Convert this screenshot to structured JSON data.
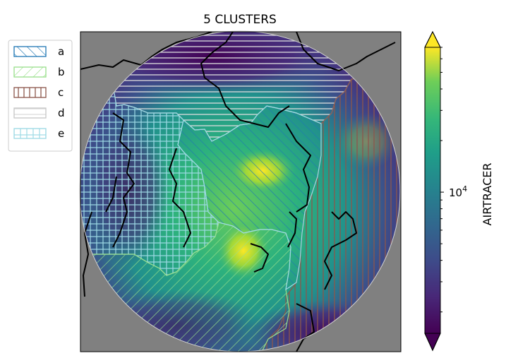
{
  "chart_data": {
    "type": "heatmap",
    "title": "5 CLUSTERS",
    "projection": "north polar stereographic",
    "legend": {
      "placement": "upper-left, outside axes",
      "entries": [
        {
          "label": "a",
          "hatch": "\\\\",
          "color": "#1f77b4"
        },
        {
          "label": "b",
          "hatch": "//",
          "color": "#98df8a"
        },
        {
          "label": "c",
          "hatch": "||",
          "color": "#8c564b"
        },
        {
          "label": "d",
          "hatch": "--",
          "color": "#c7c7c7"
        },
        {
          "label": "e",
          "hatch": "++",
          "color": "#9edae5"
        }
      ]
    },
    "colorbar": {
      "label": "AIRTRACER",
      "scale": "log",
      "colormap": "viridis",
      "extend": "both",
      "ticks": [
        {
          "value": 10000,
          "base": "10",
          "exponent": "4"
        }
      ],
      "range": [
        1500,
        70000
      ]
    },
    "background_color": "#808080"
  }
}
